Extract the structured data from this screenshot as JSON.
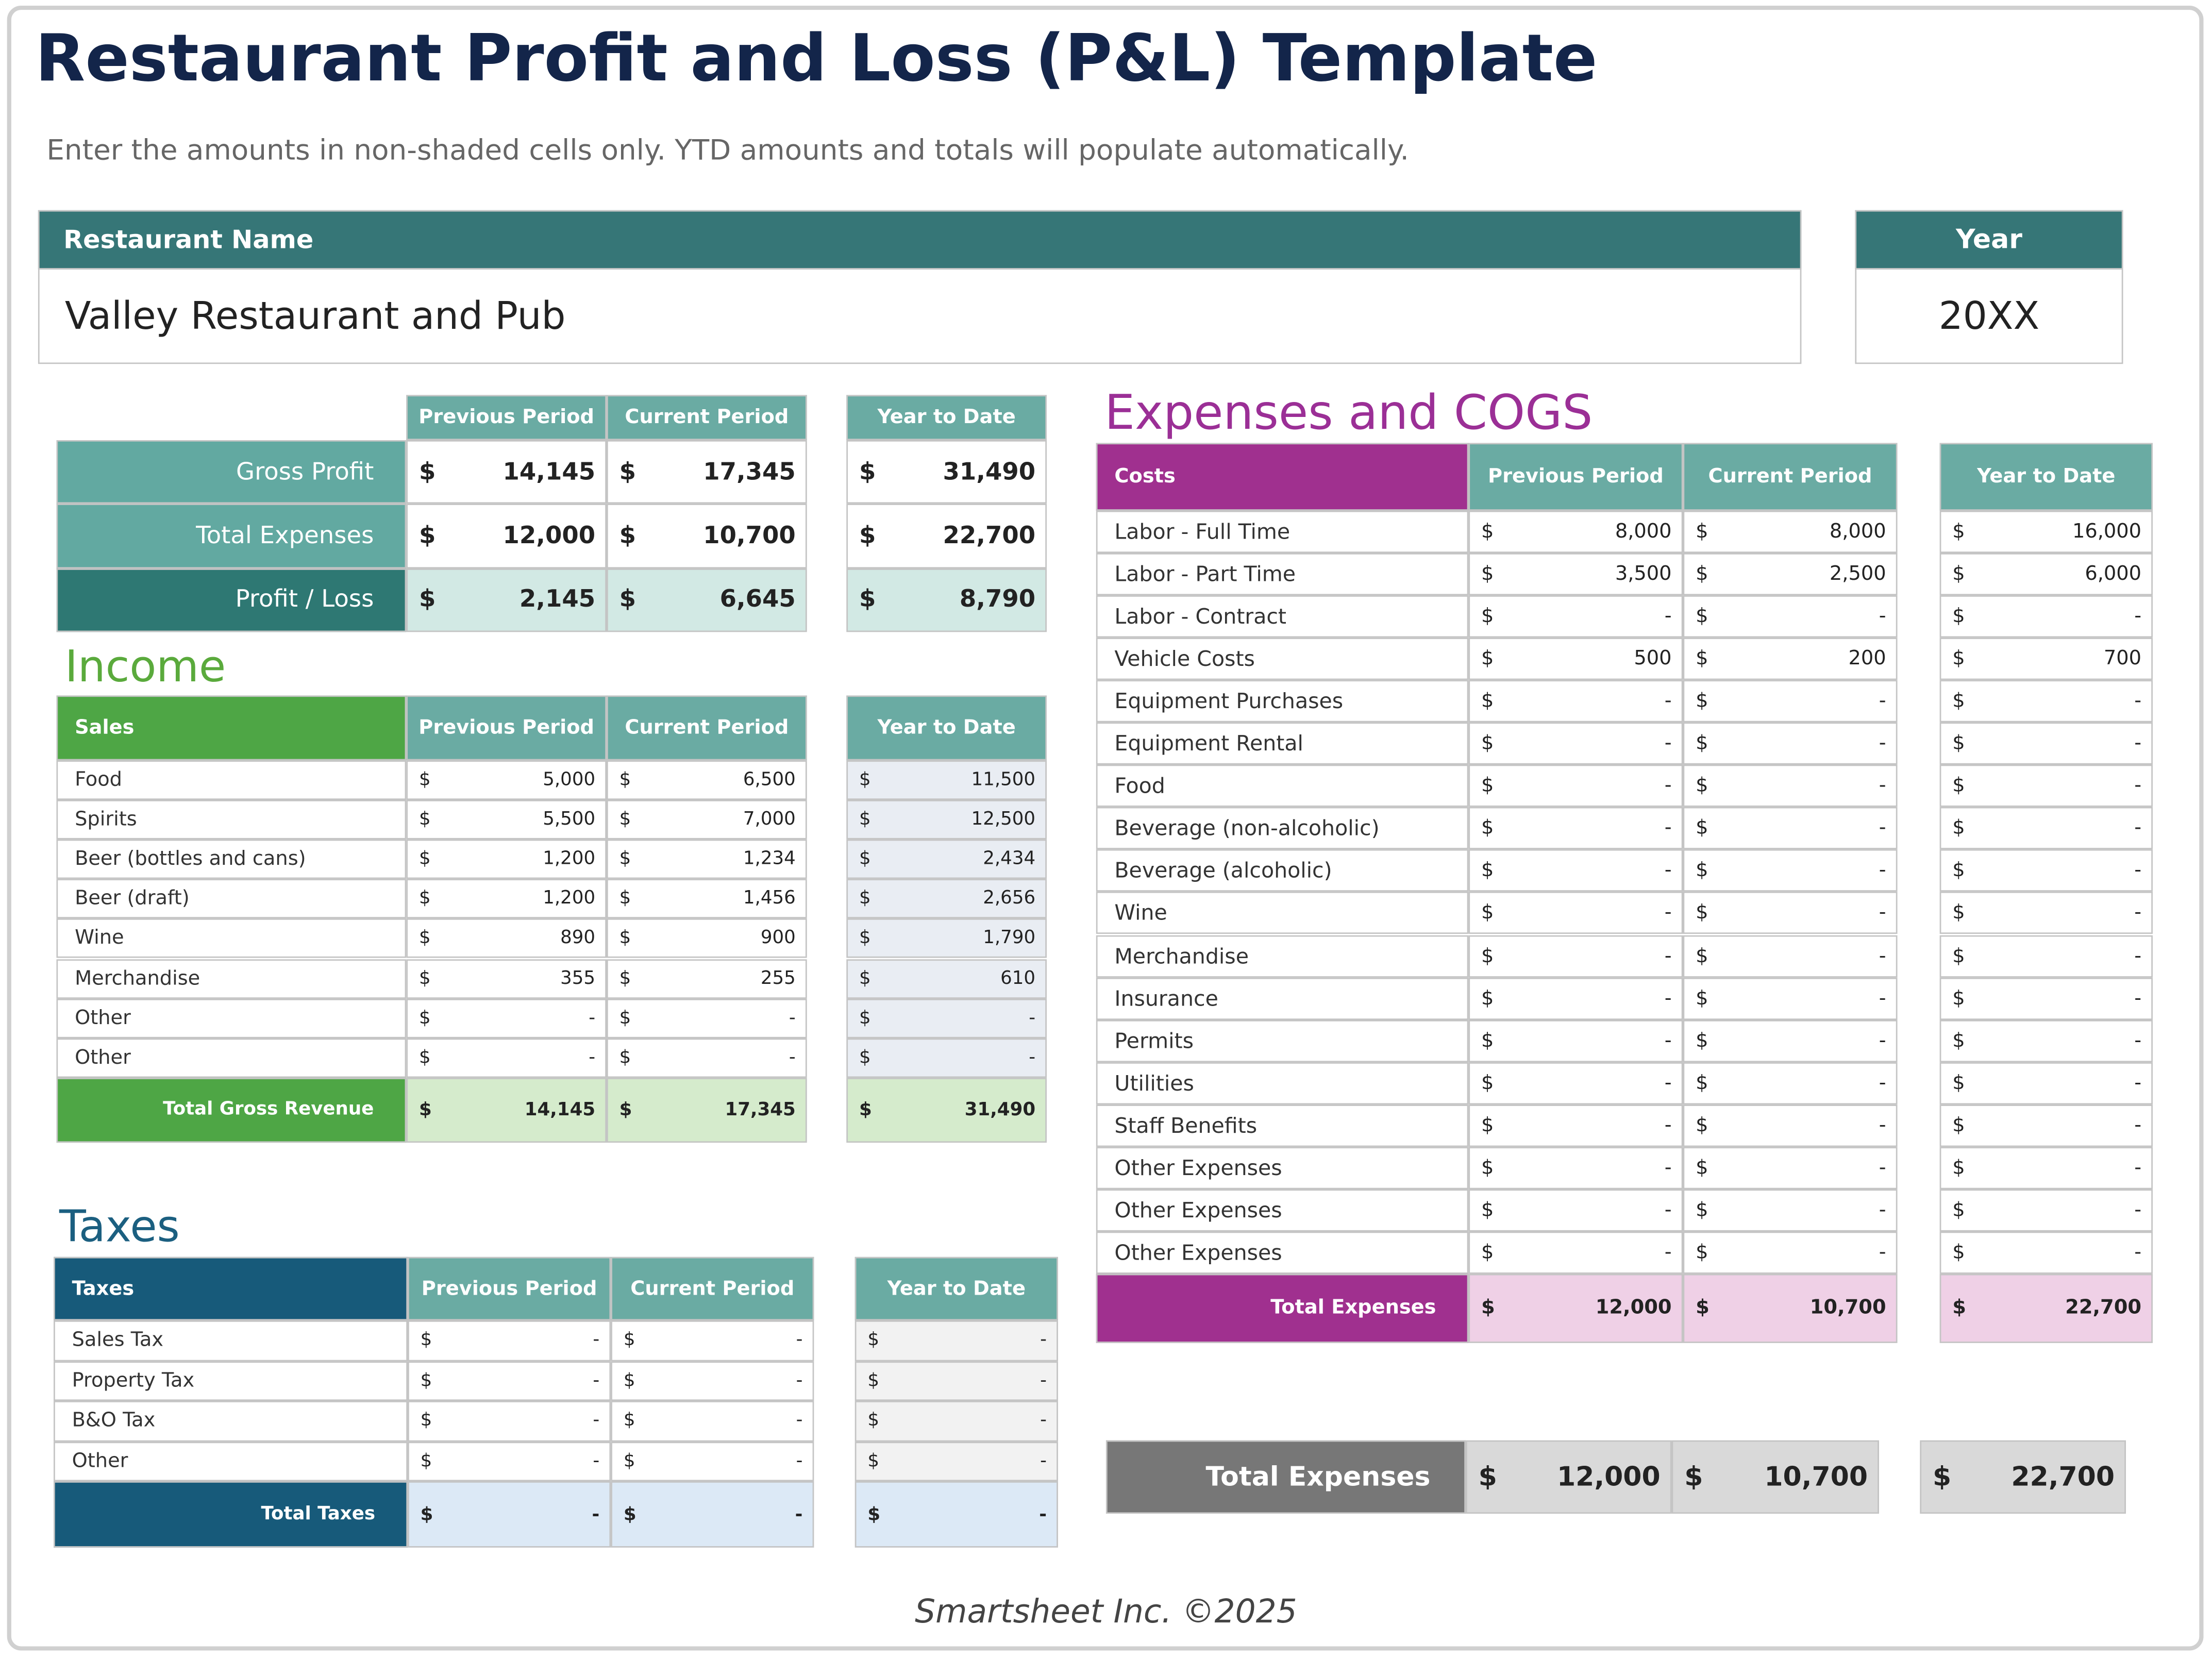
{
  "title": "Restaurant Profit and Loss (P&L) Template",
  "instructions": "Enter the amounts in non-shaded cells only. YTD amounts and totals will populate automatically.",
  "restaurant": {
    "label": "Restaurant Name",
    "value": "Valley Restaurant and Pub"
  },
  "year": {
    "label": "Year",
    "value": "20XX"
  },
  "currency": "$",
  "summary": {
    "columns": [
      "Previous Period",
      "Current Period",
      "Year to Date"
    ],
    "rows": [
      {
        "label": "Gross Profit",
        "values": [
          "14,145",
          "17,345",
          "31,490"
        ]
      },
      {
        "label": "Total Expenses",
        "values": [
          "12,000",
          "10,700",
          "22,700"
        ]
      },
      {
        "label": "Profit / Loss",
        "values": [
          "2,145",
          "6,645",
          "8,790"
        ]
      }
    ]
  },
  "income": {
    "title": "Income",
    "label_header": "Sales",
    "columns": [
      "Previous Period",
      "Current Period",
      "Year to Date"
    ],
    "rows": [
      {
        "label": "Food",
        "values": [
          "5,000",
          "6,500",
          "11,500"
        ]
      },
      {
        "label": "Spirits",
        "values": [
          "5,500",
          "7,000",
          "12,500"
        ]
      },
      {
        "label": "Beer (bottles and cans)",
        "values": [
          "1,200",
          "1,234",
          "2,434"
        ]
      },
      {
        "label": "Beer (draft)",
        "values": [
          "1,200",
          "1,456",
          "2,656"
        ]
      },
      {
        "label": "Wine",
        "values": [
          "890",
          "900",
          "1,790"
        ]
      },
      {
        "label": "Merchandise",
        "values": [
          "355",
          "255",
          "610"
        ]
      },
      {
        "label": "Other",
        "values": [
          "-",
          "-",
          "-"
        ]
      },
      {
        "label": "Other",
        "values": [
          "-",
          "-",
          "-"
        ]
      }
    ],
    "total": {
      "label": "Total Gross Revenue",
      "values": [
        "14,145",
        "17,345",
        "31,490"
      ]
    }
  },
  "taxes": {
    "title": "Taxes",
    "label_header": "Taxes",
    "columns": [
      "Previous Period",
      "Current Period",
      "Year to Date"
    ],
    "rows": [
      {
        "label": "Sales Tax",
        "values": [
          "-",
          "-",
          "-"
        ]
      },
      {
        "label": "Property Tax",
        "values": [
          "-",
          "-",
          "-"
        ]
      },
      {
        "label": "B&O Tax",
        "values": [
          "-",
          "-",
          "-"
        ]
      },
      {
        "label": "Other",
        "values": [
          "-",
          "-",
          "-"
        ]
      }
    ],
    "total": {
      "label": "Total Taxes",
      "values": [
        "-",
        "-",
        "-"
      ]
    }
  },
  "expenses": {
    "title": "Expenses and COGS",
    "label_header": "Costs",
    "columns": [
      "Previous Period",
      "Current Period",
      "Year to Date"
    ],
    "rows": [
      {
        "label": "Labor - Full Time",
        "values": [
          "8,000",
          "8,000",
          "16,000"
        ]
      },
      {
        "label": "Labor - Part Time",
        "values": [
          "3,500",
          "2,500",
          "6,000"
        ]
      },
      {
        "label": "Labor - Contract",
        "values": [
          "-",
          "-",
          "-"
        ]
      },
      {
        "label": "Vehicle Costs",
        "values": [
          "500",
          "200",
          "700"
        ]
      },
      {
        "label": "Equipment Purchases",
        "values": [
          "-",
          "-",
          "-"
        ]
      },
      {
        "label": "Equipment Rental",
        "values": [
          "-",
          "-",
          "-"
        ]
      },
      {
        "label": "Food",
        "values": [
          "-",
          "-",
          "-"
        ]
      },
      {
        "label": "Beverage (non-alcoholic)",
        "values": [
          "-",
          "-",
          "-"
        ]
      },
      {
        "label": "Beverage (alcoholic)",
        "values": [
          "-",
          "-",
          "-"
        ]
      },
      {
        "label": "Wine",
        "values": [
          "-",
          "-",
          "-"
        ]
      },
      {
        "label": "Merchandise",
        "values": [
          "-",
          "-",
          "-"
        ]
      },
      {
        "label": "Insurance",
        "values": [
          "-",
          "-",
          "-"
        ]
      },
      {
        "label": "Permits",
        "values": [
          "-",
          "-",
          "-"
        ]
      },
      {
        "label": "Utilities",
        "values": [
          "-",
          "-",
          "-"
        ]
      },
      {
        "label": "Staff Benefits",
        "values": [
          "-",
          "-",
          "-"
        ]
      },
      {
        "label": "Other Expenses",
        "values": [
          "-",
          "-",
          "-"
        ]
      },
      {
        "label": "Other Expenses",
        "values": [
          "-",
          "-",
          "-"
        ]
      },
      {
        "label": "Other Expenses",
        "values": [
          "-",
          "-",
          "-"
        ]
      }
    ],
    "total": {
      "label": "Total Expenses",
      "values": [
        "12,000",
        "10,700",
        "22,700"
      ]
    }
  },
  "grand_total": {
    "label": "Total Expenses",
    "values": [
      "12,000",
      "10,700",
      "22,700"
    ]
  },
  "footer": "Smartsheet Inc. ©2025"
}
